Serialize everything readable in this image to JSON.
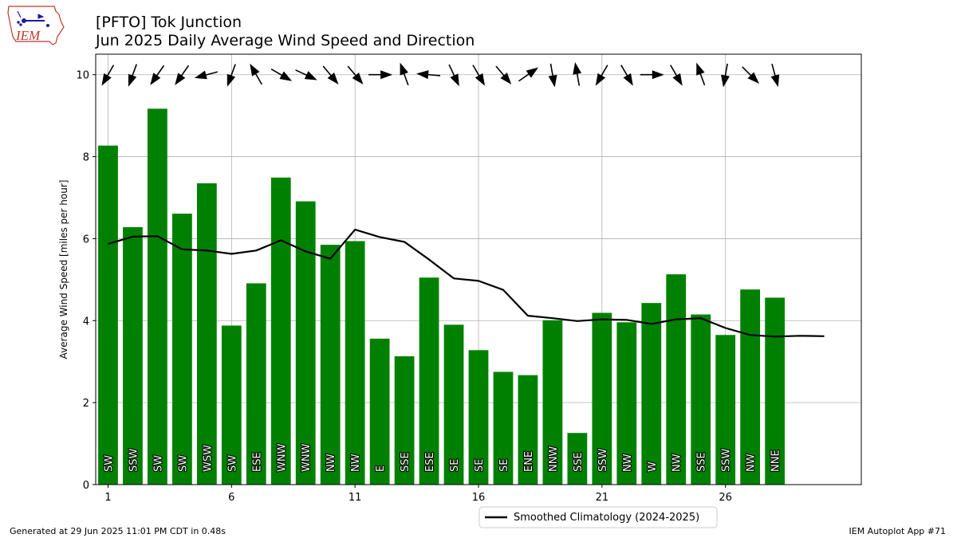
{
  "logo": {
    "text": "IEM"
  },
  "header": {
    "title": "[PFTO] Tok Junction",
    "subtitle": "Jun 2025 Daily Average Wind Speed and Direction"
  },
  "footer": {
    "generated": "Generated at 29 Jun 2025 11:01 PM CDT in 0.48s",
    "app": "IEM Autoplot App #71"
  },
  "chart_data": {
    "type": "bar",
    "ylabel": "Average Wind Speed [miles per hour]",
    "xlabel": "",
    "xlim": [
      0.5,
      31.5
    ],
    "ylim": [
      0,
      10.5
    ],
    "xticks": [
      1,
      6,
      11,
      16,
      21,
      26
    ],
    "yticks": [
      0,
      2,
      4,
      6,
      8,
      10
    ],
    "grid": true,
    "legend_position": "bottom-center",
    "bar_color": "#008000",
    "line_color": "#000000",
    "days": [
      1,
      2,
      3,
      4,
      5,
      6,
      7,
      8,
      9,
      10,
      11,
      12,
      13,
      14,
      15,
      16,
      17,
      18,
      19,
      20,
      21,
      22,
      23,
      24,
      25,
      26,
      27,
      28
    ],
    "avg_speed": [
      8.27,
      6.28,
      9.17,
      6.61,
      7.35,
      3.88,
      4.91,
      7.49,
      6.91,
      5.85,
      5.94,
      3.56,
      3.13,
      5.05,
      3.9,
      3.28,
      2.75,
      2.67,
      4.01,
      1.26,
      4.19,
      3.96,
      4.43,
      5.13,
      4.15,
      3.65,
      4.76,
      4.56
    ],
    "direction_labels": [
      "SW",
      "SSW",
      "SW",
      "SW",
      "WSW",
      "SW",
      "ESE",
      "WNW",
      "WNW",
      "NW",
      "NW",
      "E",
      "SSE",
      "ESE",
      "SE",
      "SE",
      "SE",
      "ENE",
      "NNW",
      "SSE",
      "SSW",
      "NW",
      "W",
      "NW",
      "SSE",
      "SSW",
      "NW",
      "NNE"
    ],
    "arrow_angles_deg": [
      30,
      20,
      35,
      35,
      75,
      20,
      150,
      300,
      295,
      320,
      320,
      270,
      160,
      95,
      335,
      330,
      320,
      235,
      350,
      170,
      30,
      330,
      270,
      330,
      160,
      10,
      315,
      345
    ],
    "series": [
      {
        "name": "Smoothed Climatology (2024-2025)",
        "type": "line",
        "x": [
          1,
          2,
          3,
          4,
          5,
          6,
          7,
          8,
          9,
          10,
          11,
          12,
          13,
          14,
          15,
          16,
          17,
          18,
          19,
          20,
          21,
          22,
          23,
          24,
          25,
          26,
          27,
          28,
          29,
          30
        ],
        "values": [
          5.87,
          6.05,
          6.06,
          5.74,
          5.71,
          5.63,
          5.71,
          5.96,
          5.69,
          5.51,
          6.22,
          6.04,
          5.92,
          5.49,
          5.03,
          4.97,
          4.75,
          4.12,
          4.06,
          3.99,
          4.03,
          4.02,
          3.92,
          4.03,
          4.06,
          3.82,
          3.65,
          3.61,
          3.63,
          3.62
        ]
      }
    ]
  }
}
